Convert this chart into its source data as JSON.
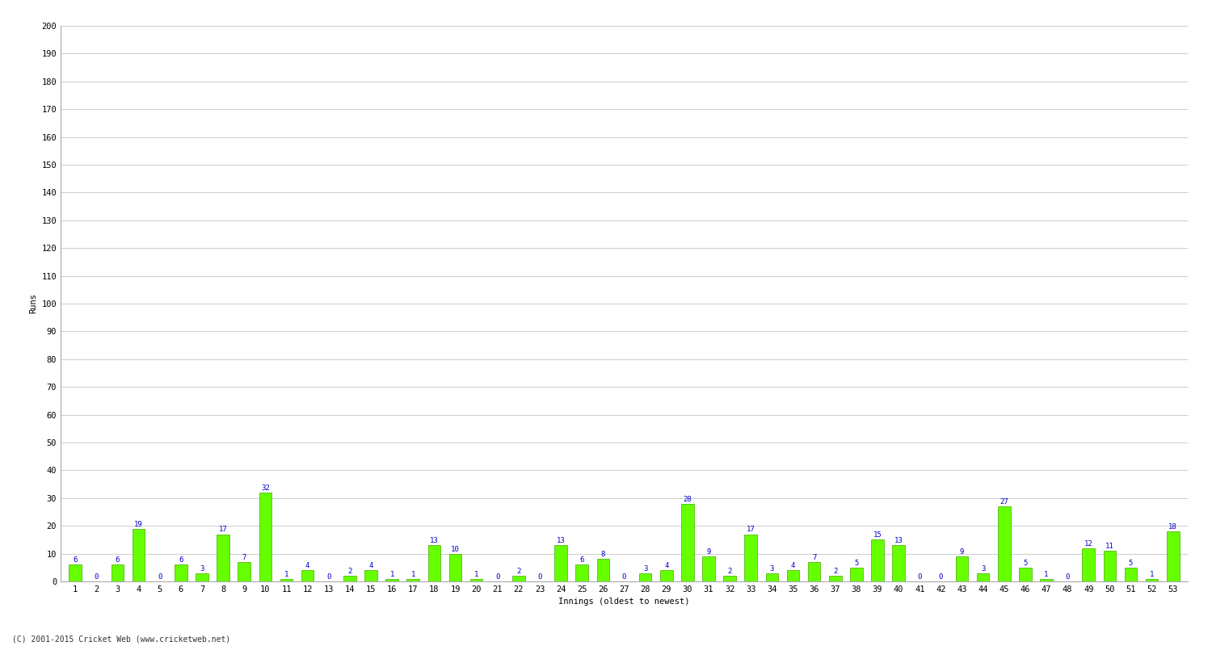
{
  "values": [
    6,
    0,
    6,
    19,
    0,
    6,
    3,
    17,
    7,
    32,
    1,
    4,
    0,
    2,
    4,
    1,
    1,
    13,
    10,
    1,
    0,
    2,
    0,
    13,
    6,
    8,
    0,
    3,
    4,
    28,
    9,
    2,
    17,
    3,
    4,
    7,
    2,
    5,
    15,
    13,
    0,
    0,
    9,
    3,
    27,
    5,
    1,
    0,
    12,
    11,
    5,
    1,
    18
  ],
  "innings": [
    1,
    2,
    3,
    4,
    5,
    6,
    7,
    8,
    9,
    10,
    11,
    12,
    13,
    14,
    15,
    16,
    17,
    18,
    19,
    20,
    21,
    22,
    23,
    24,
    25,
    26,
    27,
    28,
    29,
    30,
    31,
    32,
    33,
    34,
    35,
    36,
    37,
    38,
    39,
    40,
    41,
    42,
    43,
    44,
    45,
    46,
    47,
    48,
    49,
    50,
    51,
    52,
    53
  ],
  "bar_color": "#66ff00",
  "bar_edge_color": "#44aa00",
  "label_color": "#0000cc",
  "ylabel": "Runs",
  "xlabel": "Innings (oldest to newest)",
  "footer": "(C) 2001-2015 Cricket Web (www.cricketweb.net)",
  "ylim": [
    0,
    200
  ],
  "yticks": [
    0,
    10,
    20,
    30,
    40,
    50,
    60,
    70,
    80,
    90,
    100,
    110,
    120,
    130,
    140,
    150,
    160,
    170,
    180,
    190,
    200
  ],
  "background_color": "#ffffff",
  "grid_color": "#cccccc",
  "label_fontsize": 6.5,
  "axis_fontsize": 7.5,
  "bar_width": 0.6
}
